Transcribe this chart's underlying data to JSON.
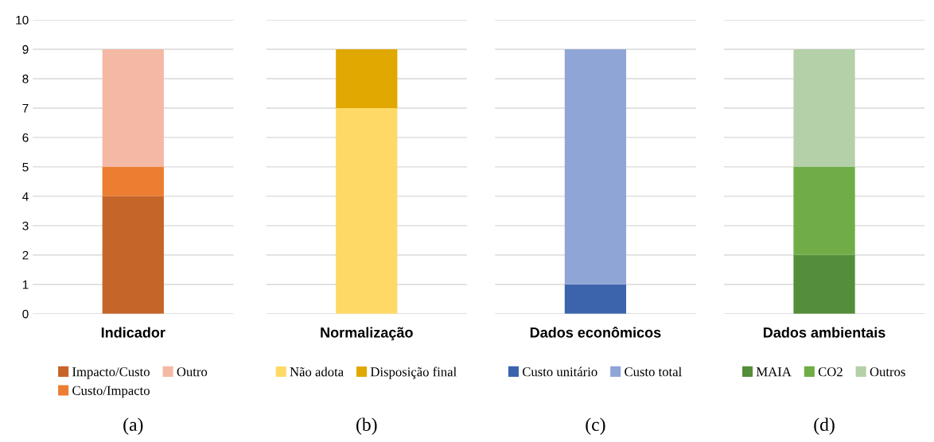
{
  "chart_data": [
    {
      "type": "bar",
      "stacked": true,
      "categories": [
        "Indicador"
      ],
      "xlabel": "(a)",
      "ylim": [
        0,
        10
      ],
      "yticks": [
        0,
        1,
        2,
        3,
        4,
        5,
        6,
        7,
        8,
        9,
        10
      ],
      "grid": "y",
      "legend": "bottom",
      "series": [
        {
          "name": "Impacto/Custo",
          "color": "#c5652a",
          "values": [
            4
          ]
        },
        {
          "name": "Custo/Impacto",
          "color": "#ed7d31",
          "values": [
            1
          ]
        },
        {
          "name": "Outro",
          "color": "#f4b9a5",
          "values": [
            4
          ]
        }
      ]
    },
    {
      "type": "bar",
      "stacked": true,
      "categories": [
        "Normalização"
      ],
      "xlabel": "(b)",
      "ylim": [
        0,
        10
      ],
      "yticks": [
        0,
        1,
        2,
        3,
        4,
        5,
        6,
        7,
        8,
        9,
        10
      ],
      "tick_labels": "x",
      "grid": "y",
      "legend": "bottom",
      "series": [
        {
          "name": "Não adota",
          "color": "#ffd966",
          "values": [
            7
          ]
        },
        {
          "name": "Disposição final",
          "color": "#e0a800",
          "values": [
            2
          ]
        }
      ]
    },
    {
      "type": "bar",
      "stacked": true,
      "categories": [
        "Dados econômicos"
      ],
      "xlabel": "(c)",
      "ylim": [
        0,
        10
      ],
      "yticks": [
        0,
        1,
        2,
        3,
        4,
        5,
        6,
        7,
        8,
        9,
        10
      ],
      "tick_labels": "x",
      "grid": "y",
      "legend": "bottom",
      "series": [
        {
          "name": "Custo unitário",
          "color": "#3b64ad",
          "values": [
            1
          ]
        },
        {
          "name": "Custo total",
          "color": "#8fa5d6",
          "values": [
            8
          ]
        }
      ]
    },
    {
      "type": "bar",
      "stacked": true,
      "categories": [
        "Dados ambientais"
      ],
      "xlabel": "(d)",
      "ylim": [
        0,
        10
      ],
      "yticks": [
        0,
        1,
        2,
        3,
        4,
        5,
        6,
        7,
        8,
        9,
        10
      ],
      "tick_labels": "x",
      "grid": "y",
      "legend": "bottom",
      "series": [
        {
          "name": "MAIA",
          "color": "#548e3a",
          "values": [
            2
          ]
        },
        {
          "name": "CO2",
          "color": "#70ad47",
          "values": [
            3
          ]
        },
        {
          "name": "Outros",
          "color": "#b4d0a8",
          "values": [
            4
          ]
        }
      ]
    }
  ]
}
